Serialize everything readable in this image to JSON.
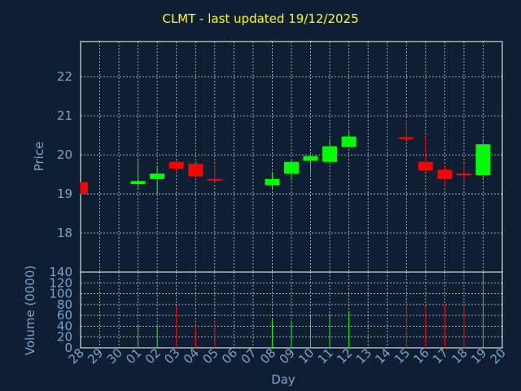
{
  "chart_data": {
    "type": "candlestick",
    "title": "CLMT - last updated 19/12/2025",
    "price_panel": {
      "ylabel": "Price",
      "ylim": [
        17.0,
        22.9
      ],
      "yticks": [
        18,
        19,
        20,
        21,
        22
      ]
    },
    "volume_panel": {
      "ylabel": "Volume (0000)",
      "ylim": [
        0,
        140
      ],
      "yticks": [
        0,
        20,
        40,
        60,
        80,
        100,
        120,
        140
      ]
    },
    "xlabel": "Day",
    "categories": [
      "28",
      "29",
      "30",
      "01",
      "02",
      "03",
      "04",
      "05",
      "06",
      "07",
      "08",
      "09",
      "10",
      "11",
      "12",
      "13",
      "14",
      "15",
      "16",
      "17",
      "18",
      "19",
      "20"
    ],
    "candles": [
      {
        "day": "28",
        "open": 19.3,
        "high": 19.3,
        "low": 19.0,
        "close": 19.0,
        "volume": 0
      },
      {
        "day": "01",
        "open": 19.25,
        "high": 19.85,
        "low": 19.15,
        "close": 19.33,
        "volume": 42
      },
      {
        "day": "02",
        "open": 19.38,
        "high": 19.72,
        "low": 19.0,
        "close": 19.52,
        "volume": 40
      },
      {
        "day": "03",
        "open": 19.82,
        "high": 19.85,
        "low": 19.55,
        "close": 19.65,
        "volume": 77
      },
      {
        "day": "04",
        "open": 19.77,
        "high": 19.77,
        "low": 19.42,
        "close": 19.45,
        "volume": 41
      },
      {
        "day": "05",
        "open": 19.38,
        "high": 19.72,
        "low": 19.28,
        "close": 19.35,
        "volume": 48
      },
      {
        "day": "08",
        "open": 19.22,
        "high": 19.55,
        "low": 19.15,
        "close": 19.38,
        "volume": 52
      },
      {
        "day": "09",
        "open": 19.52,
        "high": 19.85,
        "low": 19.35,
        "close": 19.82,
        "volume": 50
      },
      {
        "day": "10",
        "open": 19.85,
        "high": 20.0,
        "low": 19.5,
        "close": 19.97,
        "volume": 60
      },
      {
        "day": "11",
        "open": 19.82,
        "high": 20.38,
        "low": 19.78,
        "close": 20.22,
        "volume": 63
      },
      {
        "day": "12",
        "open": 20.2,
        "high": 20.6,
        "low": 20.2,
        "close": 20.47,
        "volume": 68
      },
      {
        "day": "15",
        "open": 20.45,
        "high": 20.9,
        "low": 20.38,
        "close": 20.4,
        "volume": 82
      },
      {
        "day": "16",
        "open": 19.82,
        "high": 20.5,
        "low": 19.6,
        "close": 19.6,
        "volume": 78
      },
      {
        "day": "17",
        "open": 19.62,
        "high": 19.75,
        "low": 19.2,
        "close": 19.38,
        "volume": 80
      },
      {
        "day": "18",
        "open": 19.52,
        "high": 19.78,
        "low": 19.3,
        "close": 19.5,
        "volume": 77
      },
      {
        "day": "19",
        "open": 19.48,
        "high": 20.35,
        "low": 19.4,
        "close": 20.27,
        "volume": 137
      }
    ],
    "grid": true,
    "colors": {
      "background": "#0f1f33",
      "up": "#00ff00",
      "down": "#ff0000",
      "title": "#ffff00",
      "text": "#7aa2c8",
      "grid": "#ffffff",
      "axis": "#ffffff"
    }
  }
}
